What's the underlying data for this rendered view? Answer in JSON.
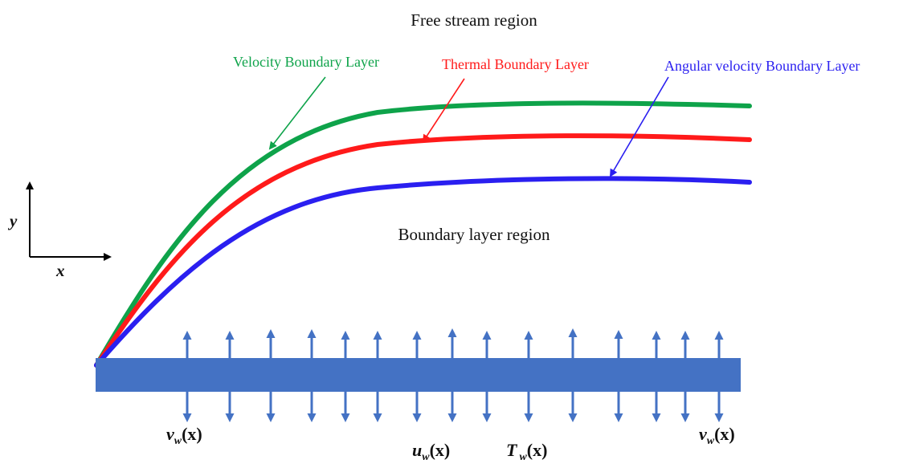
{
  "labels": {
    "free_stream": "Free stream region",
    "boundary_region": "Boundary layer region",
    "velocity_layer": "Velocity Boundary Layer",
    "thermal_layer": "Thermal Boundary Layer",
    "angular_layer": "Angular velocity Boundary Layer"
  },
  "axes": {
    "y": "y",
    "x": "x"
  },
  "wall_labels": {
    "vw_left": {
      "base": "v",
      "sub": "w",
      "arg": "(x)"
    },
    "vw_right": {
      "base": "v",
      "sub": "w",
      "arg": "(x)"
    },
    "uw": {
      "base": "u",
      "sub": "w",
      "arg": "(x)"
    },
    "tw": {
      "base": "T",
      "sub": "w",
      "arg": "(x)"
    }
  },
  "colors": {
    "velocity": "#0ea34a",
    "thermal": "#ff1a1a",
    "angular": "#2a1ff0",
    "plate": "#4472c4",
    "arrows": "#4472c4",
    "text": "#111111"
  },
  "icons": {
    "suction_arrows": "double-headed-vertical-arrow",
    "axes": "coordinate-axes-arrow"
  }
}
